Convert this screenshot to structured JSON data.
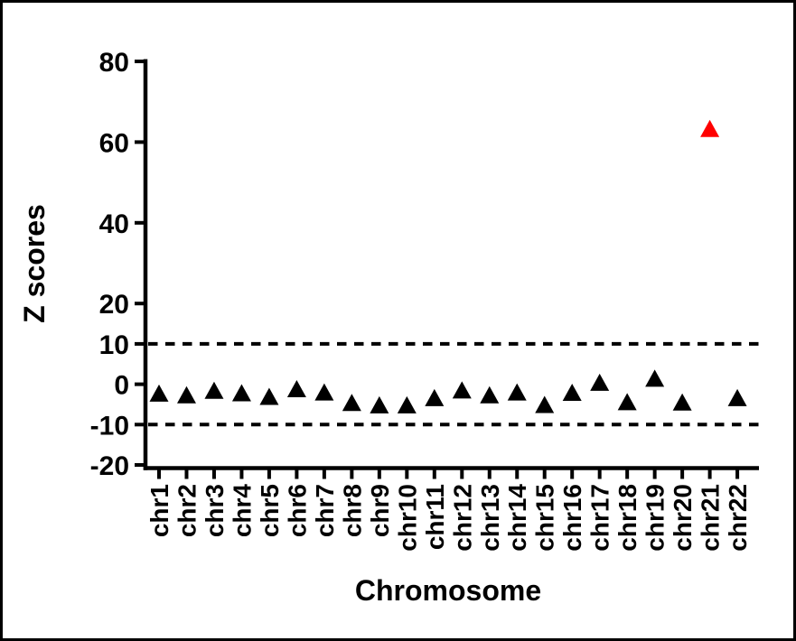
{
  "figure": {
    "background_color": "#FFFFFF",
    "frame_color": "#000000"
  },
  "chart_data": {
    "type": "scatter",
    "marker": "triangle-up",
    "title": "",
    "xlabel": "Chromosome",
    "ylabel": "Z scores",
    "categories": [
      "chr1",
      "chr2",
      "chr3",
      "chr4",
      "chr5",
      "chr6",
      "chr7",
      "chr8",
      "chr9",
      "chr10",
      "chr11",
      "chr12",
      "chr13",
      "chr14",
      "chr15",
      "chr16",
      "chr17",
      "chr18",
      "chr19",
      "chr20",
      "chr21",
      "chr22"
    ],
    "values": [
      -2.2,
      -2.6,
      -1.5,
      -2.1,
      -3.0,
      -1.1,
      -1.9,
      -4.5,
      -5.1,
      -5.1,
      -3.3,
      -1.4,
      -2.6,
      -1.9,
      -5.0,
      -2.0,
      0.5,
      -4.3,
      1.5,
      -4.4,
      63.4,
      -3.3
    ],
    "point_colors": [
      "#000000",
      "#000000",
      "#000000",
      "#000000",
      "#000000",
      "#000000",
      "#000000",
      "#000000",
      "#000000",
      "#000000",
      "#000000",
      "#000000",
      "#000000",
      "#000000",
      "#000000",
      "#000000",
      "#000000",
      "#000000",
      "#000000",
      "#000000",
      "#FF0000",
      "#000000"
    ],
    "highlight": {
      "category": "chr21",
      "value": 63.4,
      "color": "#FF0000"
    },
    "yticks": [
      -20,
      -10,
      0,
      10,
      20,
      40,
      60,
      80
    ],
    "ylim": [
      -20,
      80
    ],
    "threshold_lines": [
      {
        "y": 10,
        "style": "dashed",
        "color": "#000000"
      },
      {
        "y": -10,
        "style": "dashed",
        "color": "#000000"
      }
    ],
    "grid": false,
    "legend": false,
    "axis_color": "#000000",
    "marker_color_default": "#000000"
  }
}
